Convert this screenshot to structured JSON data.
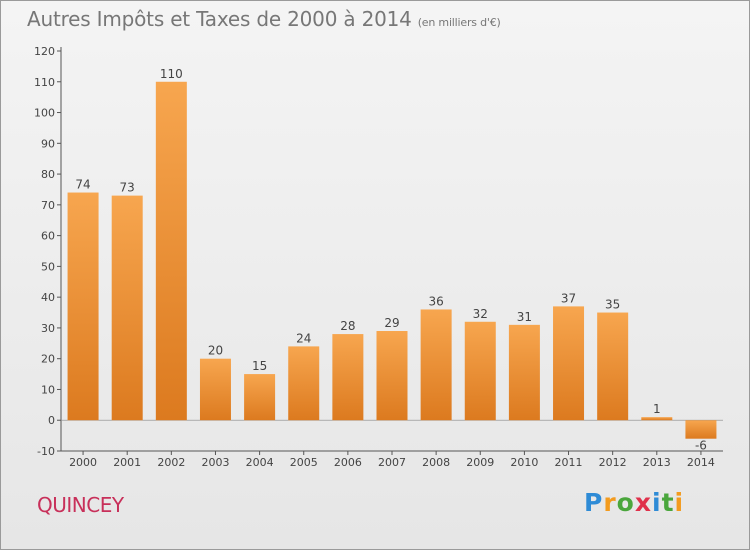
{
  "header": {
    "title": "Autres Impôts et Taxes de 2000 à 2014",
    "subtitle": "(en milliers d'€)"
  },
  "footer": {
    "place": "QUINCEY",
    "logo_letters": [
      "P",
      "r",
      "o",
      "x",
      "i",
      "t",
      "i"
    ],
    "logo_colors": [
      "#2e8bd6",
      "#f39b1e",
      "#4aa63c",
      "#e0314b",
      "#2e8bd6",
      "#4aa63c",
      "#f39b1e"
    ]
  },
  "chart_data": {
    "type": "bar",
    "title": "Autres Impôts et Taxes de 2000 à 2014",
    "subtitle": "(en milliers d'€)",
    "categories": [
      "2000",
      "2001",
      "2002",
      "2003",
      "2004",
      "2005",
      "2006",
      "2007",
      "2008",
      "2009",
      "2010",
      "2011",
      "2012",
      "2013",
      "2014"
    ],
    "values": [
      74,
      73,
      110,
      20,
      15,
      24,
      28,
      29,
      36,
      32,
      31,
      37,
      35,
      1,
      -6
    ],
    "ylim": [
      -10,
      120
    ],
    "yticks": [
      -10,
      0,
      10,
      20,
      30,
      40,
      50,
      60,
      70,
      80,
      90,
      100,
      110,
      120
    ],
    "grid": false,
    "bar_color_light": "#f7a64f",
    "bar_color_dark": "#dc7a1f"
  }
}
